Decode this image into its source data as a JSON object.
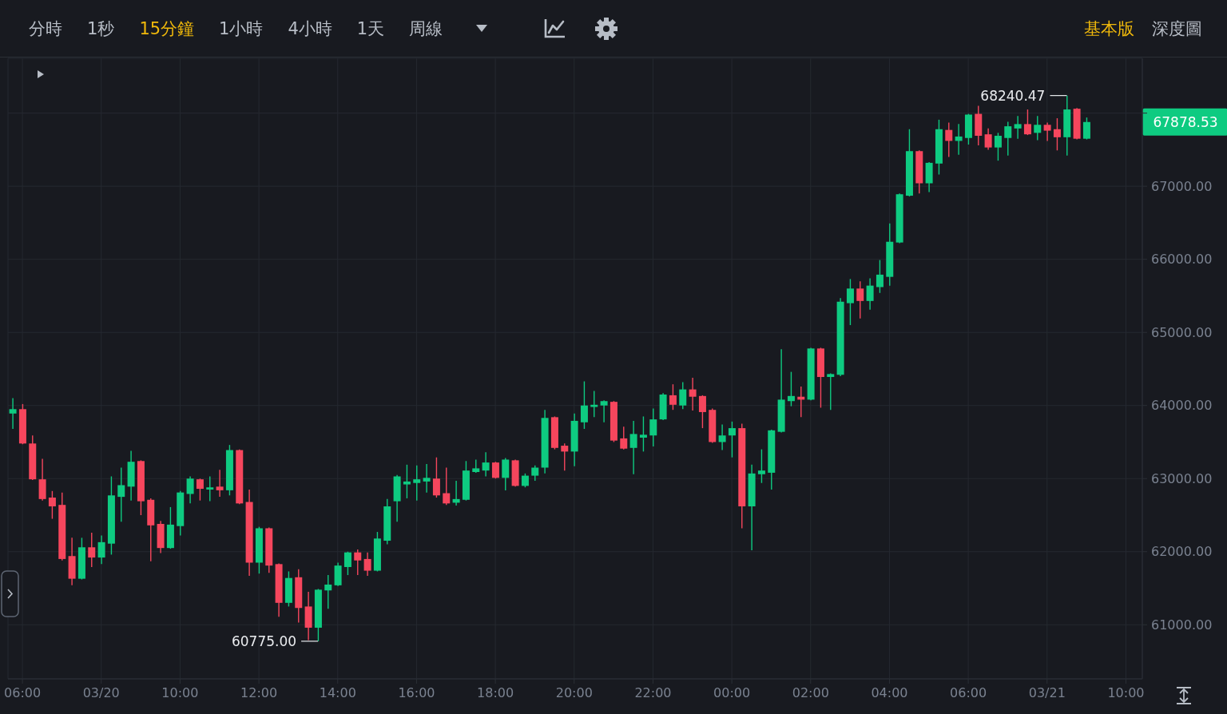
{
  "chart_data": {
    "type": "candlestick",
    "x": [
      "--03-20T05:45",
      "--03-20T06:00",
      "--03-20T06:15",
      "--03-20T06:30",
      "--03-20T06:45",
      "--03-20T07:00",
      "--03-20T07:15",
      "--03-20T07:30",
      "--03-20T07:45",
      "--03-20T08:00",
      "--03-20T08:15",
      "--03-20T08:30",
      "--03-20T08:45",
      "--03-20T09:00",
      "--03-20T09:15",
      "--03-20T09:30",
      "--03-20T09:45",
      "--03-20T10:00",
      "--03-20T10:15",
      "--03-20T10:30",
      "--03-20T10:45",
      "--03-20T11:00",
      "--03-20T11:15",
      "--03-20T11:30",
      "--03-20T11:45",
      "--03-20T12:00",
      "--03-20T12:15",
      "--03-20T12:30",
      "--03-20T12:45",
      "--03-20T13:00",
      "--03-20T13:15",
      "--03-20T13:30",
      "--03-20T13:45",
      "--03-20T14:00",
      "--03-20T14:15",
      "--03-20T14:30",
      "--03-20T14:45",
      "--03-20T15:00",
      "--03-20T15:15",
      "--03-20T15:30",
      "--03-20T15:45",
      "--03-20T16:00",
      "--03-20T16:15",
      "--03-20T16:30",
      "--03-20T16:45",
      "--03-20T17:00",
      "--03-20T17:15",
      "--03-20T17:30",
      "--03-20T17:45",
      "--03-20T18:00",
      "--03-20T18:15",
      "--03-20T18:30",
      "--03-20T18:45",
      "--03-20T19:00",
      "--03-20T19:15",
      "--03-20T19:30",
      "--03-20T19:45",
      "--03-20T20:00",
      "--03-20T20:15",
      "--03-20T20:30",
      "--03-20T20:45",
      "--03-20T21:00",
      "--03-20T21:15",
      "--03-20T21:30",
      "--03-20T21:45",
      "--03-20T22:00",
      "--03-20T22:15",
      "--03-20T22:30",
      "--03-20T22:45",
      "--03-20T23:00",
      "--03-20T23:15",
      "--03-20T23:30",
      "--03-20T23:45",
      "--03-21T00:00",
      "--03-21T00:15",
      "--03-21T00:30",
      "--03-21T00:45",
      "--03-21T01:00",
      "--03-21T01:15",
      "--03-21T01:30",
      "--03-21T01:45",
      "--03-21T02:00",
      "--03-21T02:15",
      "--03-21T02:30",
      "--03-21T02:45",
      "--03-21T03:00",
      "--03-21T03:15",
      "--03-21T03:30",
      "--03-21T03:45",
      "--03-21T04:00",
      "--03-21T04:15",
      "--03-21T04:30",
      "--03-21T04:45",
      "--03-21T05:00",
      "--03-21T05:15",
      "--03-21T05:30",
      "--03-21T05:45",
      "--03-21T06:00",
      "--03-21T06:15",
      "--03-21T06:30",
      "--03-21T06:45",
      "--03-21T07:00",
      "--03-21T07:15",
      "--03-21T07:30",
      "--03-21T07:45",
      "--03-21T08:00",
      "--03-21T08:15",
      "--03-21T08:30",
      "--03-21T08:45",
      "--03-21T09:00"
    ],
    "ohlc": [
      [
        63890,
        64100,
        63680,
        63950
      ],
      [
        63950,
        64020,
        63470,
        63480
      ],
      [
        63480,
        63590,
        62980,
        62990
      ],
      [
        62990,
        63270,
        62700,
        62720
      ],
      [
        62740,
        62830,
        62450,
        62620
      ],
      [
        62640,
        62810,
        61880,
        61900
      ],
      [
        61940,
        62190,
        61540,
        61630
      ],
      [
        61630,
        62190,
        61620,
        62060
      ],
      [
        62060,
        62260,
        61790,
        61920
      ],
      [
        61920,
        62220,
        61830,
        62130
      ],
      [
        62110,
        63030,
        61960,
        62770
      ],
      [
        62750,
        63150,
        62410,
        62910
      ],
      [
        62890,
        63380,
        62700,
        63230
      ],
      [
        63240,
        63250,
        62500,
        62690
      ],
      [
        62710,
        62730,
        61870,
        62360
      ],
      [
        62380,
        62420,
        61980,
        62050
      ],
      [
        62050,
        62610,
        62040,
        62370
      ],
      [
        62350,
        62830,
        62220,
        62810
      ],
      [
        62790,
        63030,
        62660,
        63000
      ],
      [
        62990,
        63000,
        62700,
        62860
      ],
      [
        62850,
        63030,
        62690,
        62880
      ],
      [
        62890,
        63120,
        62750,
        62840
      ],
      [
        62840,
        63460,
        62770,
        63390
      ],
      [
        63390,
        63400,
        62650,
        62660
      ],
      [
        62680,
        62850,
        61670,
        61850
      ],
      [
        61850,
        62340,
        61700,
        62320
      ],
      [
        62320,
        62330,
        61710,
        61810
      ],
      [
        61830,
        61840,
        61110,
        61300
      ],
      [
        61300,
        61730,
        61250,
        61640
      ],
      [
        61650,
        61760,
        61030,
        61230
      ],
      [
        61250,
        61450,
        60790,
        60960
      ],
      [
        60960,
        61490,
        60775,
        61480
      ],
      [
        61470,
        61680,
        61220,
        61550
      ],
      [
        61540,
        61850,
        61530,
        61810
      ],
      [
        61790,
        62000,
        61680,
        61990
      ],
      [
        61990,
        62030,
        61680,
        61880
      ],
      [
        61900,
        61990,
        61670,
        61740
      ],
      [
        61740,
        62270,
        61730,
        62180
      ],
      [
        62150,
        62720,
        62100,
        62620
      ],
      [
        62690,
        63050,
        62410,
        63030
      ],
      [
        62920,
        63190,
        62730,
        62960
      ],
      [
        62940,
        63180,
        62700,
        62990
      ],
      [
        62960,
        63200,
        62810,
        63010
      ],
      [
        63000,
        63290,
        62740,
        62770
      ],
      [
        62800,
        63150,
        62640,
        62660
      ],
      [
        62670,
        62970,
        62630,
        62720
      ],
      [
        62710,
        63240,
        62700,
        63110
      ],
      [
        63090,
        63260,
        63080,
        63140
      ],
      [
        63110,
        63360,
        63030,
        63220
      ],
      [
        63220,
        63230,
        63000,
        63010
      ],
      [
        63010,
        63280,
        62840,
        63260
      ],
      [
        63250,
        63260,
        62890,
        62900
      ],
      [
        62900,
        63070,
        62880,
        63040
      ],
      [
        63040,
        63180,
        62970,
        63150
      ],
      [
        63150,
        63940,
        63070,
        63830
      ],
      [
        63840,
        63850,
        63400,
        63420
      ],
      [
        63450,
        63480,
        63110,
        63370
      ],
      [
        63370,
        63890,
        63170,
        63790
      ],
      [
        63770,
        64330,
        63680,
        64000
      ],
      [
        63980,
        64200,
        63840,
        64010
      ],
      [
        64000,
        64070,
        63770,
        64060
      ],
      [
        64050,
        64060,
        63500,
        63520
      ],
      [
        63550,
        63710,
        63400,
        63410
      ],
      [
        63420,
        63790,
        63060,
        63610
      ],
      [
        63560,
        63850,
        63370,
        63600
      ],
      [
        63590,
        63960,
        63440,
        63810
      ],
      [
        63810,
        64170,
        63800,
        64150
      ],
      [
        64140,
        64290,
        63940,
        64010
      ],
      [
        64000,
        64320,
        63950,
        64220
      ],
      [
        64220,
        64380,
        63930,
        64120
      ],
      [
        64130,
        64140,
        63690,
        63910
      ],
      [
        63940,
        63960,
        63490,
        63500
      ],
      [
        63500,
        63740,
        63390,
        63590
      ],
      [
        63590,
        63780,
        63290,
        63690
      ],
      [
        63690,
        63750,
        62320,
        62620
      ],
      [
        62620,
        63190,
        62020,
        63070
      ],
      [
        63060,
        63400,
        62940,
        63110
      ],
      [
        63080,
        63670,
        62850,
        63660
      ],
      [
        63640,
        64770,
        63630,
        64080
      ],
      [
        64060,
        64460,
        63990,
        64130
      ],
      [
        64120,
        64260,
        63840,
        64080
      ],
      [
        64080,
        64790,
        64070,
        64780
      ],
      [
        64780,
        64790,
        63970,
        64390
      ],
      [
        64390,
        64440,
        63940,
        64430
      ],
      [
        64420,
        65470,
        64400,
        65420
      ],
      [
        65400,
        65730,
        65100,
        65600
      ],
      [
        65600,
        65700,
        65190,
        65430
      ],
      [
        65430,
        65740,
        65310,
        65640
      ],
      [
        65620,
        65990,
        65540,
        65790
      ],
      [
        65760,
        66490,
        65640,
        66240
      ],
      [
        66230,
        66900,
        66220,
        66890
      ],
      [
        66870,
        67780,
        66860,
        67480
      ],
      [
        67480,
        67490,
        66900,
        67040
      ],
      [
        67040,
        67330,
        66920,
        67320
      ],
      [
        67310,
        67910,
        67160,
        67780
      ],
      [
        67770,
        67870,
        67400,
        67620
      ],
      [
        67620,
        67850,
        67430,
        67680
      ],
      [
        67660,
        67990,
        67570,
        67980
      ],
      [
        67990,
        68100,
        67560,
        67690
      ],
      [
        67710,
        67790,
        67500,
        67530
      ],
      [
        67530,
        67730,
        67350,
        67690
      ],
      [
        67660,
        67880,
        67420,
        67820
      ],
      [
        67790,
        67960,
        67650,
        67850
      ],
      [
        67850,
        68050,
        67700,
        67710
      ],
      [
        67730,
        67960,
        67630,
        67840
      ],
      [
        67840,
        67870,
        67620,
        67760
      ],
      [
        67780,
        67930,
        67490,
        67670
      ],
      [
        67670,
        68240.47,
        67420,
        68050
      ],
      [
        68060,
        68070,
        67640,
        67650
      ],
      [
        67650,
        67940,
        67640,
        67878.53
      ]
    ],
    "colors": [
      "#0ecb81",
      "#f6465d",
      "#f6465d",
      "#f6465d",
      "#f6465d",
      "#f6465d",
      "#f6465d",
      "#0ecb81",
      "#f6465d",
      "#0ecb81",
      "#0ecb81",
      "#0ecb81",
      "#0ecb81",
      "#f6465d",
      "#f6465d",
      "#f6465d",
      "#0ecb81",
      "#0ecb81",
      "#0ecb81",
      "#f6465d",
      "#0ecb81",
      "#f6465d",
      "#0ecb81",
      "#f6465d",
      "#f6465d",
      "#0ecb81",
      "#f6465d",
      "#f6465d",
      "#0ecb81",
      "#f6465d",
      "#f6465d",
      "#0ecb81",
      "#0ecb81",
      "#0ecb81",
      "#0ecb81",
      "#f6465d",
      "#f6465d",
      "#0ecb81",
      "#0ecb81",
      "#0ecb81",
      "#0ecb81",
      "#0ecb81",
      "#0ecb81",
      "#f6465d",
      "#f6465d",
      "#0ecb81",
      "#0ecb81",
      "#0ecb81",
      "#0ecb81",
      "#f6465d",
      "#0ecb81",
      "#f6465d",
      "#0ecb81",
      "#0ecb81",
      "#0ecb81",
      "#f6465d",
      "#f6465d",
      "#0ecb81",
      "#0ecb81",
      "#0ecb81",
      "#0ecb81",
      "#f6465d",
      "#f6465d",
      "#0ecb81",
      "#0ecb81",
      "#0ecb81",
      "#0ecb81",
      "#f6465d",
      "#0ecb81",
      "#f6465d",
      "#f6465d",
      "#f6465d",
      "#0ecb81",
      "#0ecb81",
      "#f6465d",
      "#0ecb81",
      "#0ecb81",
      "#0ecb81",
      "#0ecb81",
      "#0ecb81",
      "#f6465d",
      "#0ecb81",
      "#f6465d",
      "#0ecb81",
      "#0ecb81",
      "#0ecb81",
      "#f6465d",
      "#0ecb81",
      "#0ecb81",
      "#0ecb81",
      "#0ecb81",
      "#0ecb81",
      "#f6465d",
      "#0ecb81",
      "#0ecb81",
      "#f6465d",
      "#0ecb81",
      "#0ecb81",
      "#f6465d",
      "#f6465d",
      "#0ecb81",
      "#0ecb81",
      "#0ecb81",
      "#f6465d",
      "#0ecb81",
      "#f6465d",
      "#f6465d",
      "#0ecb81",
      "#f6465d",
      "#0ecb81"
    ],
    "xlim": [
      "--03-20T05:38",
      "--03-21T10:25"
    ],
    "xticks": [
      {
        "value": "--03-20T06:00",
        "label": "06:00"
      },
      {
        "value": "--03-20T08:00",
        "label": "03/20"
      },
      {
        "value": "--03-20T10:00",
        "label": "10:00"
      },
      {
        "value": "--03-20T12:00",
        "label": "12:00"
      },
      {
        "value": "--03-20T14:00",
        "label": "14:00"
      },
      {
        "value": "--03-20T16:00",
        "label": "16:00"
      },
      {
        "value": "--03-20T18:00",
        "label": "18:00"
      },
      {
        "value": "--03-20T20:00",
        "label": "20:00"
      },
      {
        "value": "--03-20T22:00",
        "label": "22:00"
      },
      {
        "value": "--03-21T00:00",
        "label": "00:00"
      },
      {
        "value": "--03-21T02:00",
        "label": "02:00"
      },
      {
        "value": "--03-21T04:00",
        "label": "04:00"
      },
      {
        "value": "--03-21T06:00",
        "label": "06:00"
      },
      {
        "value": "--03-21T08:00",
        "label": "03/21"
      },
      {
        "value": "--03-21T10:00",
        "label": "10:00"
      }
    ],
    "ylim": [
      60260,
      68750
    ],
    "yticks": [
      {
        "value": 61000,
        "label": "61000.00"
      },
      {
        "value": 62000,
        "label": "62000.00"
      },
      {
        "value": 63000,
        "label": "63000.00"
      },
      {
        "value": 64000,
        "label": "64000.00"
      },
      {
        "value": 65000,
        "label": "65000.00"
      },
      {
        "value": 66000,
        "label": "66000.00"
      },
      {
        "value": 67000,
        "label": "67000.00"
      },
      {
        "value": 68000,
        "label": null
      }
    ],
    "grid": true,
    "annotations": [
      {
        "text": "68240.47",
        "x": "--03-21T08:30",
        "y": 68240.47
      },
      {
        "text": "60775.00",
        "x": "--03-20T13:30",
        "y": 60775
      },
      "67878.53",
      "分時",
      "1秒",
      "15分鐘",
      "1小時",
      "4小時",
      "1天",
      "周線",
      "基本版",
      "深度圖"
    ]
  }
}
